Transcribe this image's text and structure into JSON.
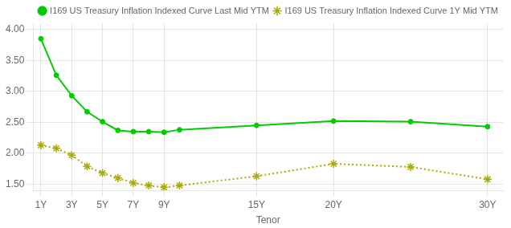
{
  "chart_data": {
    "type": "line",
    "xlabel": "Tenor",
    "x": [
      1,
      2,
      3,
      4,
      5,
      6,
      7,
      8,
      9,
      10,
      15,
      20,
      25,
      30
    ],
    "series": [
      {
        "name": "I169 US Treasury Inflation Indexed Curve Last Mid YTM",
        "color": "#00CC00",
        "marker": "circle",
        "line_style": "solid",
        "values": [
          3.85,
          3.26,
          2.93,
          2.67,
          2.51,
          2.37,
          2.35,
          2.35,
          2.34,
          2.38,
          2.45,
          2.52,
          2.51,
          2.43
        ]
      },
      {
        "name": "I169 US Treasury Inflation Indexed Curve 1Y Mid YTM",
        "color": "#AAAA00",
        "marker": "star",
        "line_style": "dotted",
        "values": [
          2.13,
          2.08,
          1.97,
          1.79,
          1.68,
          1.6,
          1.52,
          1.48,
          1.45,
          1.48,
          1.63,
          1.83,
          1.78,
          1.58
        ]
      }
    ],
    "xlim": [
      0.5,
      31
    ],
    "xticks": [
      {
        "value": 1,
        "label": "1Y"
      },
      {
        "value": 3,
        "label": "3Y"
      },
      {
        "value": 5,
        "label": "5Y"
      },
      {
        "value": 7,
        "label": "7Y"
      },
      {
        "value": 9,
        "label": "9Y"
      },
      {
        "value": 15,
        "label": "15Y"
      },
      {
        "value": 20,
        "label": "20Y"
      },
      {
        "value": 30,
        "label": "30Y"
      }
    ],
    "ylim": [
      1.4,
      4.1
    ],
    "yticks": [
      {
        "value": 1.5,
        "label": "1.50"
      },
      {
        "value": 2.0,
        "label": "2.00"
      },
      {
        "value": 2.5,
        "label": "2.50"
      },
      {
        "value": 3.0,
        "label": "3.00"
      },
      {
        "value": 3.5,
        "label": "3.50"
      },
      {
        "value": 4.0,
        "label": "4.00"
      }
    ],
    "grid": true,
    "legend": "upper right"
  }
}
